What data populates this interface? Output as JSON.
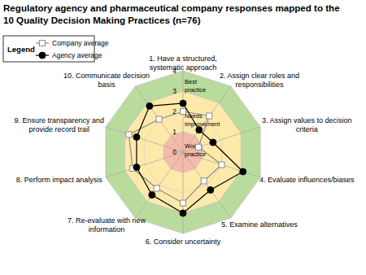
{
  "chart_data": {
    "type": "radar",
    "title": "Regulatory agency and pharmaceutical company responses mapped to the\n10 Quality Decision Making Practices (n=76)",
    "categories": [
      "1. Have a structured,\nsystematic approach",
      "2. Assign clear roles and\nresponsibilities",
      "3. Assign values to decision\ncriteria",
      "4. Evaluate influences/biases",
      "5. Examine alternatives",
      "6. Consider uncertainty",
      "7. Re-evaluate with new\ninformation",
      "8. Perform impact analysis",
      "9. Ensure transparency and\nprovide record trail",
      "10. Communicate decision\nbasis"
    ],
    "series": [
      {
        "name": "Company average",
        "color": "#8c8c8c",
        "marker": "square",
        "values": [
          2.0,
          2.2,
          0.8,
          2.0,
          1.75,
          2.5,
          2.2,
          2.6,
          2.8,
          2.0
        ]
      },
      {
        "name": "Agency average",
        "color": "#000000",
        "marker": "circle",
        "values": [
          2.4,
          1.35,
          1.55,
          3.1,
          2.3,
          3.0,
          2.6,
          2.4,
          2.4,
          2.8
        ]
      }
    ],
    "ylim": [
      0,
      4
    ],
    "yticks": [
      0,
      1,
      2,
      3,
      4
    ],
    "grid": true,
    "legend": "top-left",
    "legend_title": "Legend",
    "bands": [
      {
        "label": "Best\npractice",
        "from": 3,
        "to": 4,
        "color": "#b9dc9c"
      },
      {
        "label": "Needs\nimprovement",
        "from": 1,
        "to": 3,
        "color": "#fde9a9"
      },
      {
        "label": "Worst\npractice",
        "from": 0,
        "to": 1,
        "color": "#f5baa9"
      }
    ]
  }
}
